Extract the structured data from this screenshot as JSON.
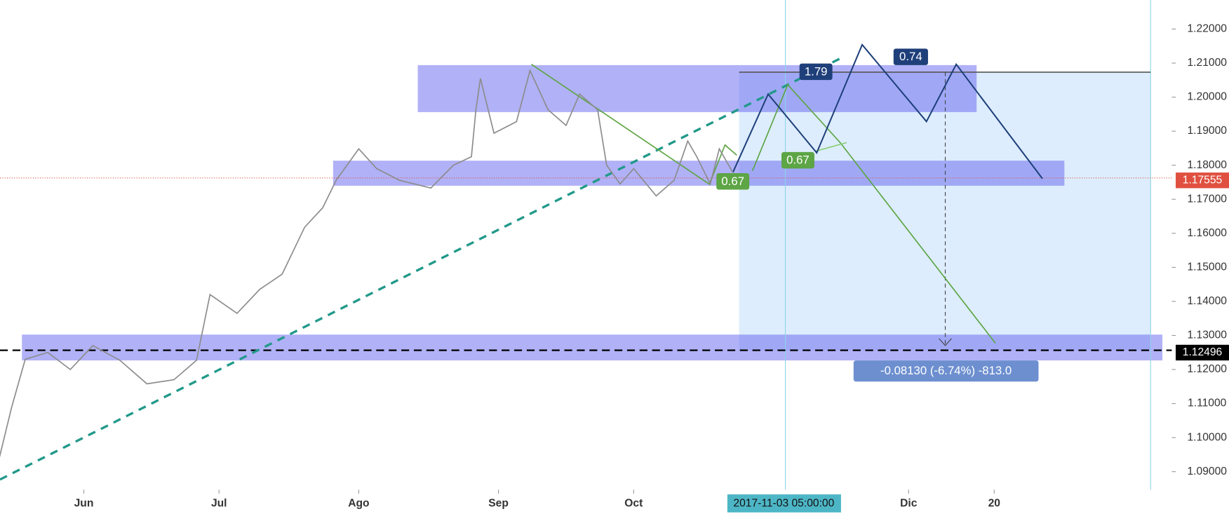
{
  "chart_data": {
    "type": "line",
    "x": [
      133,
      136,
      139,
      144,
      149,
      154,
      160,
      166,
      172,
      177,
      180,
      186,
      191,
      196,
      201,
      205,
      208,
      213,
      217,
      222,
      229,
      234,
      238,
      239,
      240,
      243,
      248,
      251,
      255,
      259,
      262,
      266,
      268,
      271,
      274,
      279,
      283,
      286,
      288,
      291,
      293,
      296
    ],
    "series": [
      {
        "color": "#8c8c8c",
        "values": [
          1.0927,
          1.109,
          1.123,
          1.125,
          1.12,
          1.127,
          1.1227,
          1.1158,
          1.117,
          1.1227,
          1.142,
          1.1365,
          1.1435,
          1.148,
          1.1618,
          1.1675,
          1.1756,
          1.1848,
          1.179,
          1.1756,
          1.1733,
          1.18,
          1.1825,
          1.1963,
          1.2055,
          1.1894,
          1.1928,
          1.2078,
          1.1963,
          1.1917,
          1.2009,
          1.1963,
          1.18,
          1.1745,
          1.179,
          1.171,
          1.1756,
          1.1871,
          1.1825,
          1.1745,
          1.1848,
          1.1779
        ]
      }
    ],
    "xlim": [
      133.4,
      393.4
    ],
    "xticks": [
      {
        "value": 152,
        "label": "Jun"
      },
      {
        "value": 182,
        "label": "Jul"
      },
      {
        "value": 213,
        "label": "Ago"
      },
      {
        "value": 244,
        "label": "Sep"
      },
      {
        "value": 274,
        "label": "Oct"
      },
      {
        "value": 335,
        "label": "Dic"
      },
      {
        "value": 354,
        "label": "20"
      }
    ],
    "ylim": [
      1.0847,
      1.2285
    ],
    "yticks": [
      {
        "value": 1.09,
        "label": "1.09000"
      },
      {
        "value": 1.1,
        "label": "1.10000"
      },
      {
        "value": 1.11,
        "label": "1.11000"
      },
      {
        "value": 1.12,
        "label": "1.12000"
      },
      {
        "value": 1.13,
        "label": "1.13000"
      },
      {
        "value": 1.14,
        "label": "1.14000"
      },
      {
        "value": 1.15,
        "label": "1.15000"
      },
      {
        "value": 1.16,
        "label": "1.16000"
      },
      {
        "value": 1.17,
        "label": "1.17000"
      },
      {
        "value": 1.18,
        "label": "1.18000"
      },
      {
        "value": 1.19,
        "label": "1.19000"
      },
      {
        "value": 1.2,
        "label": "1.20000"
      },
      {
        "value": 1.21,
        "label": "1.21000"
      },
      {
        "value": 1.22,
        "label": "1.22000"
      }
    ],
    "current_price": 1.17555,
    "target_price": 1.12496,
    "crosshair_date": "2017-11-03 05:00:00",
    "annotations": [
      "1.79",
      "0.74",
      "0.67",
      "0.67",
      "-0.08130 (-6.74%) -813.0"
    ]
  }
}
